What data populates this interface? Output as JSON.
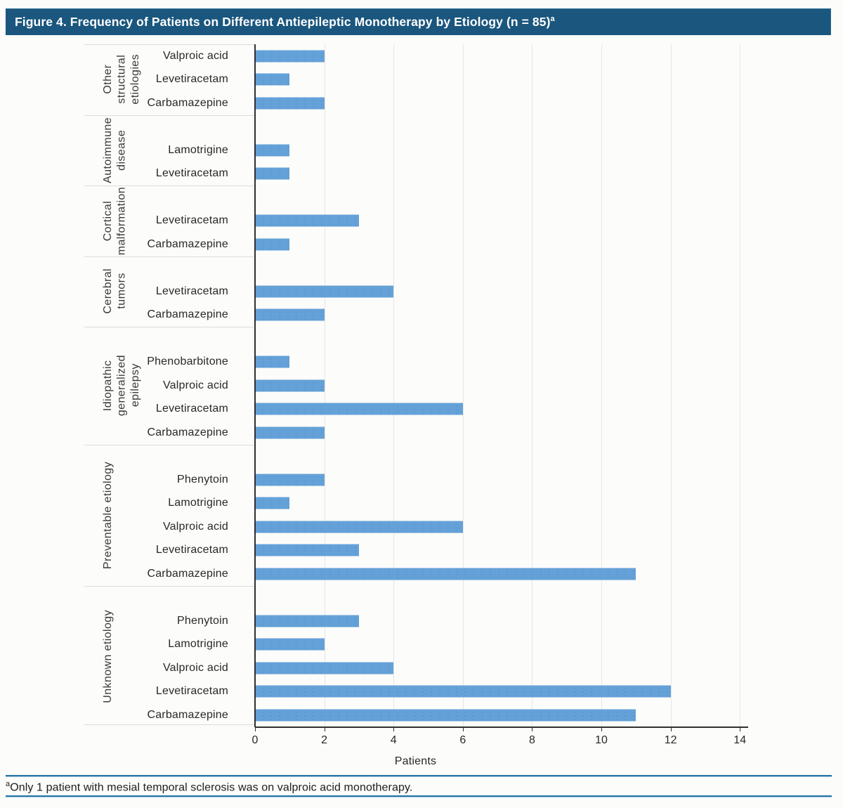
{
  "title": {
    "text": "Figure 4. Frequency of Patients on Different Antiepileptic Monotherapy by Etiology (n = 85)",
    "superscript": "a"
  },
  "footnote": {
    "superscript": "a",
    "text": "Only 1 patient with mesial temporal sclerosis was on valproic acid monotherapy."
  },
  "colors": {
    "title_bar_background": "#1a567d",
    "title_text": "#ffffff",
    "bar_fill": "#64a1d8",
    "gridline": "#e7e6e3",
    "group_separator": "#dcdcda",
    "axis_line": "#2f2f2f",
    "footnote_rule": "#2676a8",
    "page_background": "#fcfcfa"
  },
  "chart_data": {
    "type": "bar",
    "orientation": "horizontal",
    "title": "Figure 4. Frequency of Patients on Different Antiepileptic Monotherapy by Etiology (n = 85)",
    "xlabel": "Patients",
    "ylabel": "",
    "xlim": [
      0,
      14
    ],
    "x_ticks": [
      0,
      2,
      4,
      6,
      8,
      10,
      12,
      14
    ],
    "grid": "vertical gridlines on, light gray",
    "legend": "none",
    "groups": [
      {
        "label": "Other structural etiologies",
        "lines": [
          "Other",
          "structural",
          "etiologies"
        ],
        "rows": [
          {
            "drug": "Valproic acid",
            "value": 2
          },
          {
            "drug": "Levetiracetam",
            "value": 1
          },
          {
            "drug": "Carbamazepine",
            "value": 2
          }
        ]
      },
      {
        "label": "Autoimmune disease",
        "lines": [
          "Autoimmune",
          "disease"
        ],
        "rows": [
          {
            "drug": "Lamotrigine",
            "value": 1
          },
          {
            "drug": "Levetiracetam",
            "value": 1
          }
        ]
      },
      {
        "label": "Cortical malformation",
        "lines": [
          "Cortical",
          "malformation"
        ],
        "rows": [
          {
            "drug": "Levetiracetam",
            "value": 3
          },
          {
            "drug": "Carbamazepine",
            "value": 1
          }
        ]
      },
      {
        "label": "Cerebral tumors",
        "lines": [
          "Cerebral",
          "tumors"
        ],
        "rows": [
          {
            "drug": "Levetiracetam",
            "value": 4
          },
          {
            "drug": "Carbamazepine",
            "value": 2
          }
        ]
      },
      {
        "label": "Idiopathic generalized epilepsy",
        "lines": [
          "Idiopathic",
          "generalized",
          "epilepsy"
        ],
        "rows": [
          {
            "drug": "Phenobarbitone",
            "value": 1
          },
          {
            "drug": "Valproic acid",
            "value": 2
          },
          {
            "drug": "Levetiracetam",
            "value": 6
          },
          {
            "drug": "Carbamazepine",
            "value": 2
          }
        ]
      },
      {
        "label": "Preventable etiology",
        "lines": [
          "Preventable etiology"
        ],
        "rows": [
          {
            "drug": "Phenytoin",
            "value": 2
          },
          {
            "drug": "Lamotrigine",
            "value": 1
          },
          {
            "drug": "Valproic acid",
            "value": 6
          },
          {
            "drug": "Levetiracetam",
            "value": 3
          },
          {
            "drug": "Carbamazepine",
            "value": 11
          }
        ]
      },
      {
        "label": "Unknown etiology",
        "lines": [
          "Unknown etiology"
        ],
        "rows": [
          {
            "drug": "Phenytoin",
            "value": 3
          },
          {
            "drug": "Lamotrigine",
            "value": 2
          },
          {
            "drug": "Valproic acid",
            "value": 4
          },
          {
            "drug": "Levetiracetam",
            "value": 12
          },
          {
            "drug": "Carbamazepine",
            "value": 11
          }
        ]
      }
    ]
  }
}
